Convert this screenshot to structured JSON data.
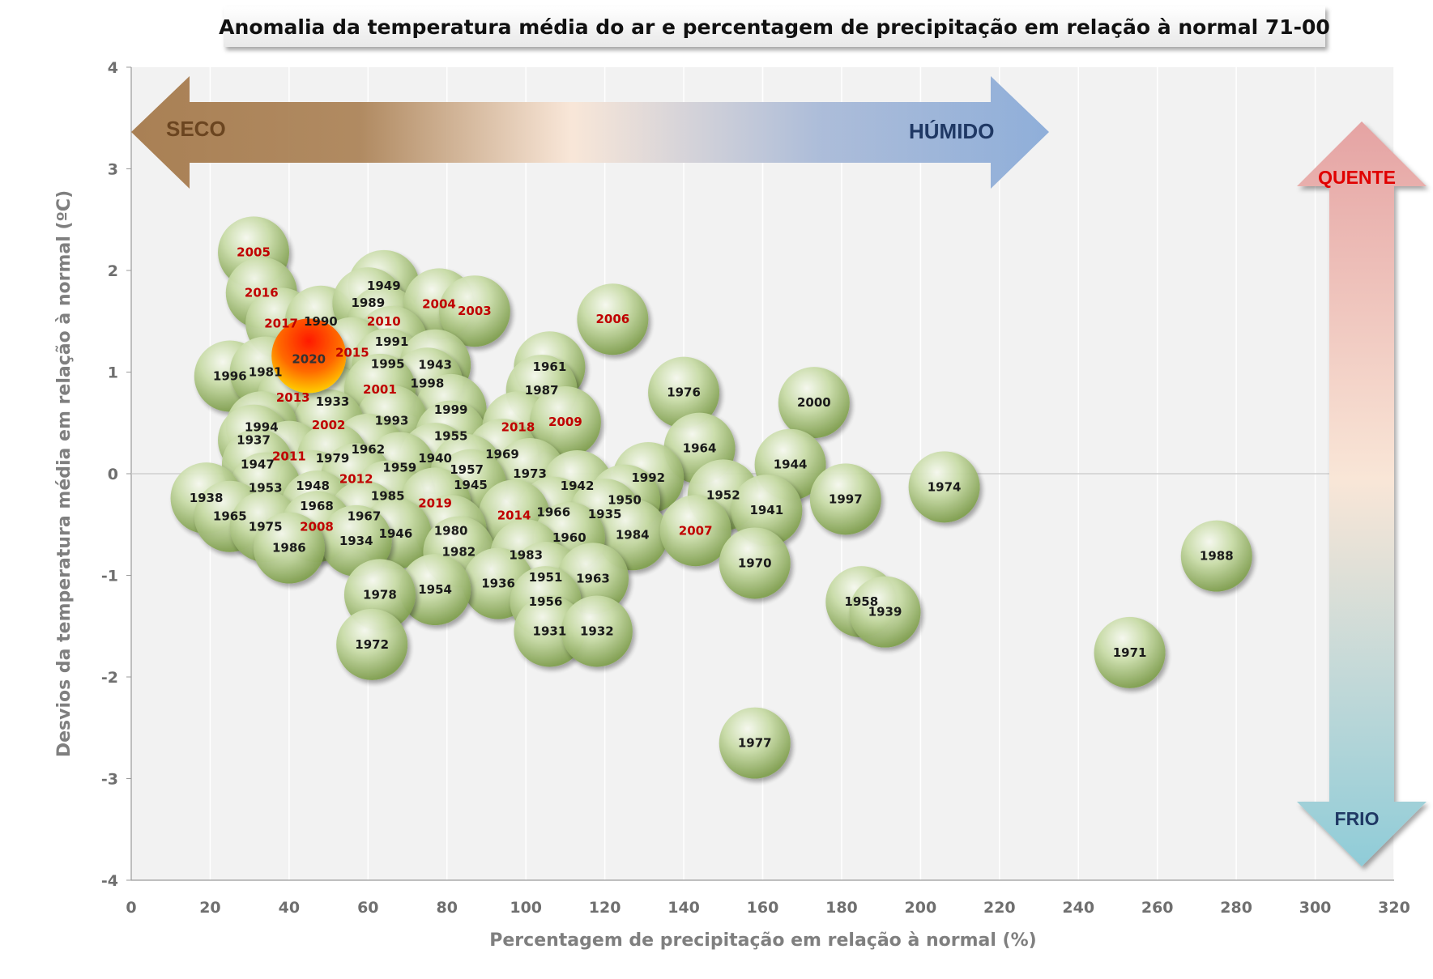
{
  "chart_data": {
    "type": "scatter",
    "title": "Anomalia da temperatura média do ar e percentagem de precipitação em relação à normal 71-00",
    "xlabel": "Percentagem de precipitação em relação à normal (%)",
    "ylabel": "Desvios da temperatura média em relação à normal  (ºC)",
    "xlim": [
      0,
      320
    ],
    "ylim": [
      -4,
      4
    ],
    "x_ticks": [
      "0",
      "20",
      "40",
      "60",
      "80",
      "100",
      "120",
      "140",
      "160",
      "180",
      "200",
      "220",
      "240",
      "260",
      "280",
      "300",
      "320"
    ],
    "y_ticks": [
      "-4",
      "-3",
      "-2",
      "-1",
      "0",
      "1",
      "2",
      "3",
      "4"
    ],
    "annotations": {
      "dry": "SECO",
      "wet": "HÚMIDO",
      "hot": "QUENTE",
      "cold": "FRIO"
    },
    "colors": {
      "year_text": "#1a1a1a",
      "recent_year_text": "#c00000",
      "bubble": "#a6c27a",
      "highlight": "#ff2000"
    },
    "highlight_year": "2020",
    "points": [
      {
        "year": "2005",
        "x": 31,
        "y": 2.18,
        "recent": true
      },
      {
        "year": "2016",
        "x": 33,
        "y": 1.78,
        "recent": true
      },
      {
        "year": "2017",
        "x": 38,
        "y": 1.48,
        "recent": true
      },
      {
        "year": "1990",
        "x": 48,
        "y": 1.5
      },
      {
        "year": "1949",
        "x": 64,
        "y": 1.85
      },
      {
        "year": "1989",
        "x": 60,
        "y": 1.68
      },
      {
        "year": "2010",
        "x": 64,
        "y": 1.5,
        "recent": true
      },
      {
        "year": "2004",
        "x": 78,
        "y": 1.67,
        "recent": true
      },
      {
        "year": "2003",
        "x": 87,
        "y": 1.6,
        "recent": true
      },
      {
        "year": "2006",
        "x": 122,
        "y": 1.52,
        "recent": true
      },
      {
        "year": "1991",
        "x": 66,
        "y": 1.3
      },
      {
        "year": "2015",
        "x": 56,
        "y": 1.19,
        "recent": true
      },
      {
        "year": "1996",
        "x": 25,
        "y": 0.96
      },
      {
        "year": "1981",
        "x": 34,
        "y": 1.0
      },
      {
        "year": "1995",
        "x": 65,
        "y": 1.08
      },
      {
        "year": "1943",
        "x": 77,
        "y": 1.07
      },
      {
        "year": "1998",
        "x": 75,
        "y": 0.89
      },
      {
        "year": "2013",
        "x": 41,
        "y": 0.75,
        "recent": true
      },
      {
        "year": "1933",
        "x": 51,
        "y": 0.71
      },
      {
        "year": "2001",
        "x": 63,
        "y": 0.83,
        "recent": true
      },
      {
        "year": "1961",
        "x": 106,
        "y": 1.05
      },
      {
        "year": "1987",
        "x": 104,
        "y": 0.82
      },
      {
        "year": "1976",
        "x": 140,
        "y": 0.8
      },
      {
        "year": "2000",
        "x": 173,
        "y": 0.7
      },
      {
        "year": "1999",
        "x": 81,
        "y": 0.63
      },
      {
        "year": "1993",
        "x": 66,
        "y": 0.52
      },
      {
        "year": "2002",
        "x": 50,
        "y": 0.48,
        "recent": true
      },
      {
        "year": "1994",
        "x": 33,
        "y": 0.46
      },
      {
        "year": "1955",
        "x": 81,
        "y": 0.37
      },
      {
        "year": "2018",
        "x": 98,
        "y": 0.46,
        "recent": true
      },
      {
        "year": "2009",
        "x": 110,
        "y": 0.51,
        "recent": true
      },
      {
        "year": "1937",
        "x": 31,
        "y": 0.33
      },
      {
        "year": "1962",
        "x": 60,
        "y": 0.24
      },
      {
        "year": "1964",
        "x": 144,
        "y": 0.25
      },
      {
        "year": "2011",
        "x": 40,
        "y": 0.17,
        "recent": true
      },
      {
        "year": "1979",
        "x": 51,
        "y": 0.15
      },
      {
        "year": "1940",
        "x": 77,
        "y": 0.15
      },
      {
        "year": "1969",
        "x": 94,
        "y": 0.19
      },
      {
        "year": "1947",
        "x": 32,
        "y": 0.09
      },
      {
        "year": "1959",
        "x": 68,
        "y": 0.06
      },
      {
        "year": "1957",
        "x": 85,
        "y": 0.04
      },
      {
        "year": "1944",
        "x": 167,
        "y": 0.09
      },
      {
        "year": "1973",
        "x": 101,
        "y": 0.0
      },
      {
        "year": "1948",
        "x": 46,
        "y": -0.12
      },
      {
        "year": "2012",
        "x": 57,
        "y": -0.05,
        "recent": true
      },
      {
        "year": "1945",
        "x": 86,
        "y": -0.11
      },
      {
        "year": "1942",
        "x": 113,
        "y": -0.12
      },
      {
        "year": "1992",
        "x": 131,
        "y": -0.04
      },
      {
        "year": "1974",
        "x": 206,
        "y": -0.13
      },
      {
        "year": "1953",
        "x": 34,
        "y": -0.14
      },
      {
        "year": "1985",
        "x": 65,
        "y": -0.22
      },
      {
        "year": "1952",
        "x": 150,
        "y": -0.21
      },
      {
        "year": "1938",
        "x": 19,
        "y": -0.24
      },
      {
        "year": "1997",
        "x": 181,
        "y": -0.25
      },
      {
        "year": "2019",
        "x": 77,
        "y": -0.29,
        "recent": true
      },
      {
        "year": "1950",
        "x": 125,
        "y": -0.26
      },
      {
        "year": "1968",
        "x": 47,
        "y": -0.32
      },
      {
        "year": "1941",
        "x": 161,
        "y": -0.36
      },
      {
        "year": "1966",
        "x": 107,
        "y": -0.38
      },
      {
        "year": "1935",
        "x": 120,
        "y": -0.4
      },
      {
        "year": "1965",
        "x": 25,
        "y": -0.42
      },
      {
        "year": "2014",
        "x": 97,
        "y": -0.41,
        "recent": true
      },
      {
        "year": "1967",
        "x": 59,
        "y": -0.42
      },
      {
        "year": "1975",
        "x": 34,
        "y": -0.52
      },
      {
        "year": "2008",
        "x": 47,
        "y": -0.52,
        "recent": true
      },
      {
        "year": "1980",
        "x": 81,
        "y": -0.56
      },
      {
        "year": "1984",
        "x": 127,
        "y": -0.6
      },
      {
        "year": "2007",
        "x": 143,
        "y": -0.56,
        "recent": true
      },
      {
        "year": "1946",
        "x": 67,
        "y": -0.59
      },
      {
        "year": "1934",
        "x": 57,
        "y": -0.66
      },
      {
        "year": "1960",
        "x": 111,
        "y": -0.63
      },
      {
        "year": "1986",
        "x": 40,
        "y": -0.73
      },
      {
        "year": "1982",
        "x": 83,
        "y": -0.77
      },
      {
        "year": "1983",
        "x": 100,
        "y": -0.8
      },
      {
        "year": "1970",
        "x": 158,
        "y": -0.88
      },
      {
        "year": "1988",
        "x": 275,
        "y": -0.81
      },
      {
        "year": "1951",
        "x": 105,
        "y": -1.02
      },
      {
        "year": "1963",
        "x": 117,
        "y": -1.03
      },
      {
        "year": "1936",
        "x": 93,
        "y": -1.08
      },
      {
        "year": "1954",
        "x": 77,
        "y": -1.14
      },
      {
        "year": "1978",
        "x": 63,
        "y": -1.19
      },
      {
        "year": "1956",
        "x": 105,
        "y": -1.26
      },
      {
        "year": "1958",
        "x": 185,
        "y": -1.26
      },
      {
        "year": "1939",
        "x": 191,
        "y": -1.36
      },
      {
        "year": "1931",
        "x": 106,
        "y": -1.55
      },
      {
        "year": "1932",
        "x": 118,
        "y": -1.55
      },
      {
        "year": "1972",
        "x": 61,
        "y": -1.68
      },
      {
        "year": "1971",
        "x": 253,
        "y": -1.76
      },
      {
        "year": "1977",
        "x": 158,
        "y": -2.65
      },
      {
        "year": "2020",
        "x": 45,
        "y": 1.16,
        "recent": true
      }
    ]
  }
}
